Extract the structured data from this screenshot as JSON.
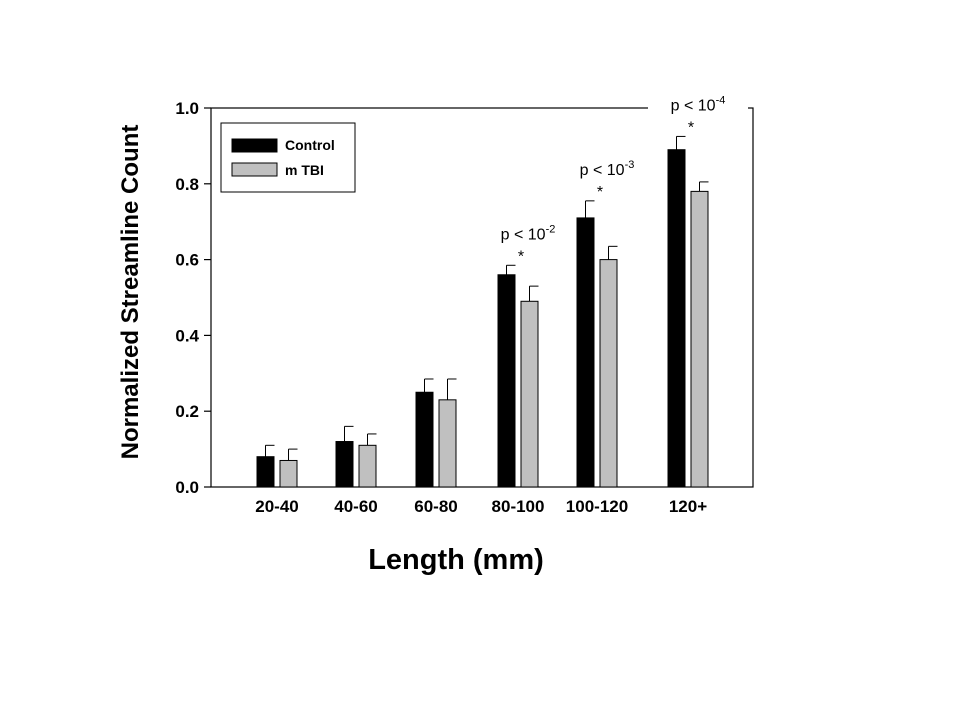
{
  "chart_data": {
    "type": "bar",
    "title": "",
    "xlabel": "Length (mm)",
    "ylabel": "Normalized Streamline Count",
    "ylim": [
      0,
      1.0
    ],
    "yticks": [
      "0.0",
      "0.2",
      "0.4",
      "0.6",
      "0.8",
      "1.0"
    ],
    "categories": [
      "20-40",
      "40-60",
      "60-80",
      "80-100",
      "100-120",
      "120+"
    ],
    "series": [
      {
        "name": "Control",
        "color": "#000000",
        "values": [
          0.08,
          0.12,
          0.25,
          0.56,
          0.71,
          0.89
        ],
        "errors": [
          0.03,
          0.04,
          0.035,
          0.025,
          0.045,
          0.035
        ]
      },
      {
        "name": "m TBI",
        "color": "#c0c0c0",
        "values": [
          0.07,
          0.11,
          0.23,
          0.49,
          0.6,
          0.78
        ],
        "errors": [
          0.03,
          0.03,
          0.055,
          0.04,
          0.035,
          0.025
        ]
      }
    ],
    "annotations": [
      {
        "category": "80-100",
        "base": "p < 10",
        "exponent": "-2",
        "marker": "*"
      },
      {
        "category": "100-120",
        "base": "p < 10",
        "exponent": "-3",
        "marker": "*"
      },
      {
        "category": "120+",
        "base": "p < 10",
        "exponent": "-4",
        "marker": "*"
      }
    ],
    "legend_position": "top-left",
    "grid": false
  }
}
